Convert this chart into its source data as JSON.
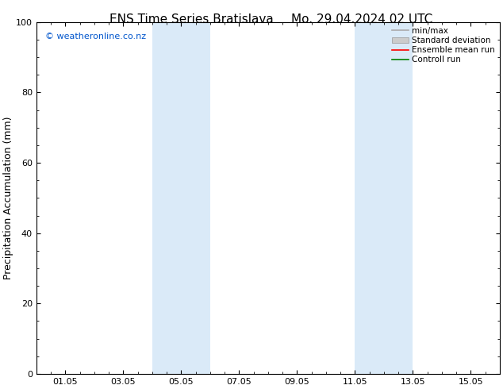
{
  "title_left": "ENS Time Series Bratislava",
  "title_right": "Mo. 29.04.2024 02 UTC",
  "ylabel": "Precipitation Accumulation (mm)",
  "watermark": "© weatheronline.co.nz",
  "watermark_color": "#0055cc",
  "xlim_start": 0,
  "xlim_end": 16,
  "ylim": [
    0,
    100
  ],
  "yticks": [
    0,
    20,
    40,
    60,
    80,
    100
  ],
  "xtick_labels": [
    "01.05",
    "03.05",
    "05.05",
    "07.05",
    "09.05",
    "11.05",
    "13.05",
    "15.05"
  ],
  "xtick_positions": [
    1,
    3,
    5,
    7,
    9,
    11,
    13,
    15
  ],
  "shaded_regions": [
    {
      "xmin": 4.0,
      "xmax": 6.0,
      "color": "#daeaf8"
    },
    {
      "xmin": 11.0,
      "xmax": 13.0,
      "color": "#daeaf8"
    }
  ],
  "legend_items": [
    {
      "label": "min/max",
      "color": "#aaaaaa",
      "type": "line"
    },
    {
      "label": "Standard deviation",
      "color": "#cccccc",
      "type": "patch"
    },
    {
      "label": "Ensemble mean run",
      "color": "#ff0000",
      "type": "line"
    },
    {
      "label": "Controll run",
      "color": "#008000",
      "type": "line"
    }
  ],
  "bg_color": "#ffffff",
  "title_fontsize": 11,
  "axis_label_fontsize": 9,
  "tick_fontsize": 8,
  "legend_fontsize": 7.5,
  "watermark_fontsize": 8
}
